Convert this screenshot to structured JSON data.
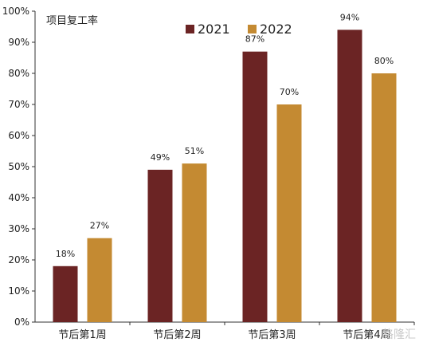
{
  "chart_data": {
    "type": "bar",
    "title": "项目复工率",
    "categories": [
      "节后第1周",
      "节后第2周",
      "节后第3周",
      "节后第4周"
    ],
    "series": [
      {
        "name": "2021",
        "values": [
          18,
          49,
          87,
          94
        ],
        "labels": [
          "18%",
          "49%",
          "87%",
          "94%"
        ],
        "color": "#6b2424"
      },
      {
        "name": "2022",
        "values": [
          27,
          51,
          70,
          80
        ],
        "labels": [
          "27%",
          "51%",
          "70%",
          "80%"
        ],
        "color": "#c48a32"
      }
    ],
    "ylim": [
      0,
      100
    ],
    "yticks": [
      "0%",
      "10%",
      "20%",
      "30%",
      "40%",
      "50%",
      "60%",
      "70%",
      "80%",
      "90%",
      "100%"
    ],
    "xlabel": "",
    "ylabel": "",
    "grid": false,
    "legend_position": "top-center"
  },
  "watermark": {
    "text": "格隆汇"
  }
}
